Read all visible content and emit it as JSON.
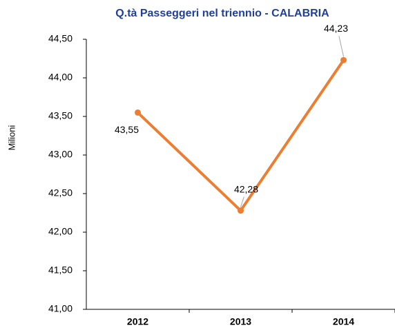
{
  "chart_data": {
    "type": "line",
    "title": "Q.tà Passeggeri nel triennio - CALABRIA",
    "y_label": "Milioni",
    "categories": [
      "2012",
      "2013",
      "2014"
    ],
    "series": [
      {
        "name": "Q.tà Passeggeri",
        "color": "#ed7d31",
        "values": [
          43.55,
          42.28,
          44.23
        ],
        "value_labels": [
          "43,55",
          "42,28",
          "44,23"
        ]
      }
    ],
    "ylim": [
      41,
      44.5
    ],
    "yticks": [
      {
        "value": 41,
        "label": "41,00"
      },
      {
        "value": 41.5,
        "label": "41,50"
      },
      {
        "value": 42,
        "label": "42,00"
      },
      {
        "value": 42.5,
        "label": "42,50"
      },
      {
        "value": 43,
        "label": "43,00"
      },
      {
        "value": 43.5,
        "label": "43,50"
      },
      {
        "value": 44,
        "label": "44,00"
      },
      {
        "value": 44.5,
        "label": "44,50"
      }
    ],
    "grid": false
  }
}
